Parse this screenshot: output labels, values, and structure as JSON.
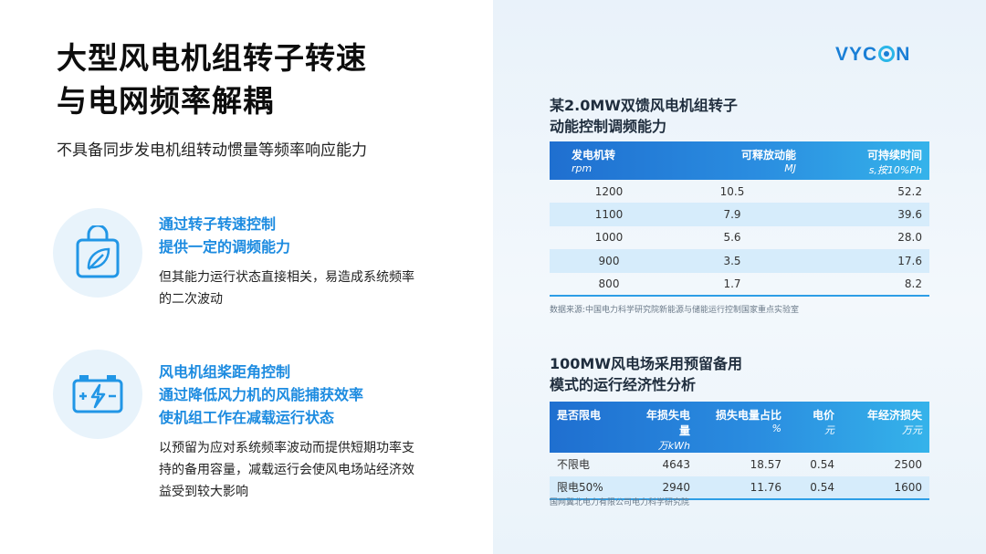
{
  "title_line1": "大型风电机组转子转速",
  "title_line2": "与电网频率解耦",
  "subtitle": "不具备同步发电机组转动惯量等频率响应能力",
  "features": [
    {
      "icon": "leaf-bag-icon",
      "title_lines": [
        "通过转子转速控制",
        "提供一定的调频能力"
      ],
      "desc_lines": [
        "但其能力运行状态直接相关，易造成系统频率",
        "的二次波动"
      ]
    },
    {
      "icon": "battery-charge-icon",
      "title_lines": [
        "风电机组桨距角控制",
        "通过降低风力机的风能捕获效率",
        "使机组工作在减载运行状态"
      ],
      "desc_lines": [
        "以预留为应对系统频率波动而提供短期功率支",
        "持的备用容量，减载运行会使风电场站经济效",
        "益受到较大影响"
      ]
    }
  ],
  "logo": {
    "pre": "VYC",
    "post": "N"
  },
  "table1": {
    "title_lines": [
      "某2.0MW双馈风电机组转子",
      "动能控制调频能力"
    ],
    "headers": [
      {
        "label": "发电机转",
        "unit": "rpm"
      },
      {
        "label": "可释放动能",
        "unit": "MJ"
      },
      {
        "label": "可持续时间",
        "unit": "s,按10%Ph"
      }
    ],
    "rows": [
      [
        "1200",
        "10.5",
        "52.2"
      ],
      [
        "1100",
        "7.9",
        "39.6"
      ],
      [
        "1000",
        "5.6",
        "28.0"
      ],
      [
        "900",
        "3.5",
        "17.6"
      ],
      [
        "800",
        "1.7",
        "8.2"
      ]
    ],
    "source": "数据来源:中国电力科学研究院新能源与储能运行控制国家重点实验室"
  },
  "table2": {
    "title_lines": [
      "100MW风电场采用预留备用",
      "模式的运行经济性分析"
    ],
    "headers": [
      {
        "label": "是否限电",
        "unit": ""
      },
      {
        "label": "年损失电量",
        "unit": "万kWh"
      },
      {
        "label": "损失电量占比",
        "unit": "%"
      },
      {
        "label": "电价",
        "unit": "元"
      },
      {
        "label": "年经济损失",
        "unit": "万元"
      }
    ],
    "rows": [
      [
        "不限电",
        "4643",
        "18.57",
        "0.54",
        "2500"
      ],
      [
        "限电50%",
        "2940",
        "11.76",
        "0.54",
        "1600"
      ]
    ],
    "source": "国网冀北电力有限公司电力科学研究院"
  },
  "colors": {
    "accent": "#1c8be0",
    "header_start": "#1f6fd0",
    "header_end": "#35b3ea",
    "stripe": "#d6ecfb"
  }
}
